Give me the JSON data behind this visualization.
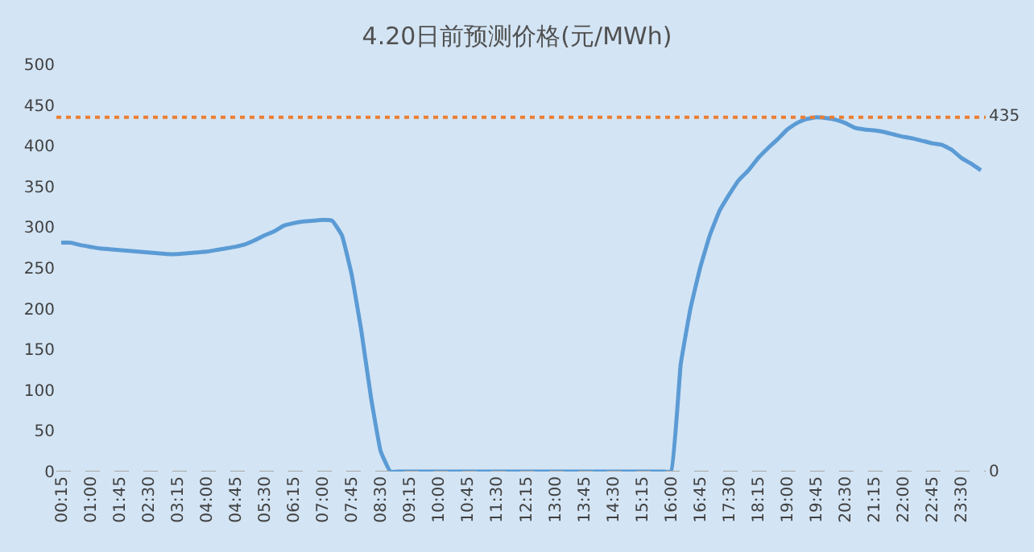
{
  "chart_data": {
    "type": "line",
    "title": "4.20日前预测价格(元/MWh)",
    "categories": [
      "00:15",
      null,
      null,
      "01:00",
      null,
      null,
      "01:45",
      null,
      null,
      "02:30",
      null,
      null,
      "03:15",
      null,
      null,
      "04:00",
      null,
      null,
      "04:45",
      null,
      null,
      "05:30",
      null,
      null,
      "06:15",
      null,
      null,
      "07:00",
      null,
      null,
      "07:45",
      null,
      null,
      "08:30",
      null,
      null,
      "09:15",
      null,
      null,
      "10:00",
      null,
      null,
      "10:45",
      null,
      null,
      "11:30",
      null,
      null,
      "12:15",
      null,
      null,
      "13:00",
      null,
      null,
      "13:45",
      null,
      null,
      "14:30",
      null,
      null,
      "15:15",
      null,
      null,
      "16:00",
      null,
      null,
      "16:45",
      null,
      null,
      "17:30",
      null,
      null,
      "18:15",
      null,
      null,
      "19:00",
      null,
      null,
      "19:45",
      null,
      null,
      "20:30",
      null,
      null,
      "21:15",
      null,
      null,
      "22:00",
      null,
      null,
      "22:45",
      null,
      null,
      "23:30",
      null,
      null
    ],
    "series": [
      {
        "color": "#5b9bd5",
        "values": [
          281,
          281,
          278,
          276,
          274,
          273,
          272,
          271,
          270,
          269,
          268,
          267,
          267,
          268,
          269,
          270,
          272,
          274,
          276,
          279,
          284,
          290,
          295,
          302,
          305,
          307,
          308,
          309,
          308,
          290,
          242,
          173,
          91,
          25,
          0,
          0,
          0,
          0,
          0,
          0,
          0,
          0,
          0,
          0,
          0,
          0,
          0,
          0,
          0,
          0,
          0,
          0,
          0,
          0,
          0,
          0,
          0,
          0,
          0,
          0,
          0,
          0,
          0,
          0,
          132,
          200,
          250,
          290,
          320,
          340,
          358,
          370,
          385,
          397,
          408,
          420,
          428,
          433,
          435,
          434,
          432,
          428,
          422,
          420,
          419,
          417,
          414,
          411,
          409,
          406,
          403,
          401,
          395,
          385,
          378,
          370
        ]
      }
    ],
    "ylim": [
      0,
      500
    ],
    "yticks": [
      0,
      50,
      100,
      150,
      200,
      250,
      300,
      350,
      400,
      450,
      500
    ],
    "ref_lines": [
      {
        "axis": "y",
        "value": 435,
        "label": "435",
        "color": "#ed7d31",
        "line_style": "dotted"
      },
      {
        "axis": "y",
        "value": 0,
        "label": "0",
        "color": "#a6a6a6",
        "line_style": "dashed"
      }
    ],
    "grid": false,
    "marker": "none",
    "line_style": "solid"
  }
}
